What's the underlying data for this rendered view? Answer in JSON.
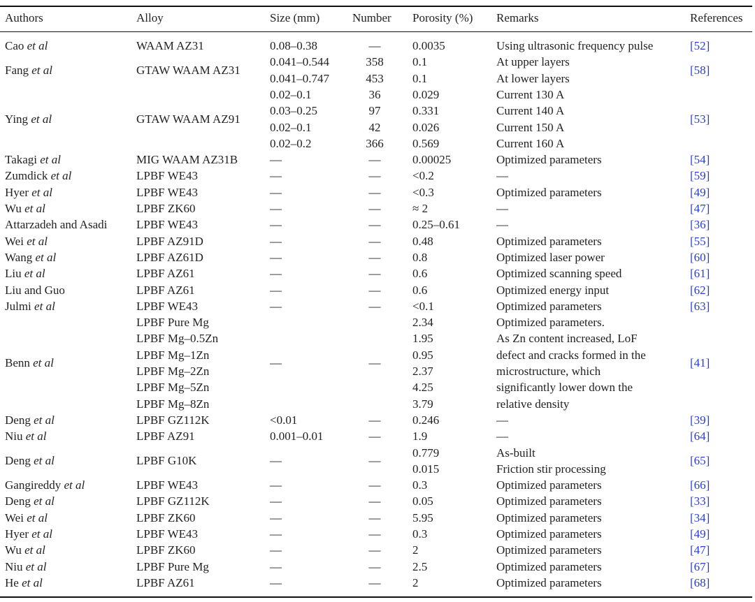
{
  "table": {
    "headers": [
      "Authors",
      "Alloy",
      "Size (mm)",
      "Number",
      "Porosity (%)",
      "Remarks",
      "References"
    ],
    "rows": [
      {
        "authors": "Cao",
        "authors_italic": "et al",
        "alloy": "WAAM AZ31",
        "size": "0.08–0.38",
        "number": "—",
        "porosity": "0.0035",
        "remarks": "Using ultrasonic frequency pulse",
        "references": "[52]"
      },
      {
        "authors": "Fang",
        "authors_italic": "et al",
        "alloy": "GTAW WAAM AZ31",
        "size": [
          "0.041–0.544",
          "0.041–0.747"
        ],
        "number": [
          "358",
          "453"
        ],
        "porosity": [
          "0.1",
          "0.1"
        ],
        "remarks": [
          "At upper layers",
          "At lower layers"
        ],
        "references": "[58]"
      },
      {
        "authors": "Ying",
        "authors_italic": "et al",
        "alloy": "GTAW WAAM AZ91",
        "size": [
          "0.02–0.1",
          "0.03–0.25",
          "0.02–0.1",
          "0.02–0.2"
        ],
        "number": [
          "36",
          "97",
          "42",
          "366"
        ],
        "porosity": [
          "0.029",
          "0.331",
          "0.026",
          "0.569"
        ],
        "remarks": [
          "Current 130 A",
          "Current 140 A",
          "Current 150 A",
          "Current 160 A"
        ],
        "references": "[53]"
      },
      {
        "authors": "Takagi",
        "authors_italic": "et al",
        "alloy": "MIG WAAM AZ31B",
        "size": "—",
        "number": "—",
        "porosity": "0.00025",
        "remarks": "Optimized parameters",
        "references": "[54]"
      },
      {
        "authors": "Zumdick",
        "authors_italic": "et al",
        "alloy": "LPBF WE43",
        "size": "—",
        "number": "—",
        "porosity": "<0.2",
        "remarks": "—",
        "references": "[59]"
      },
      {
        "authors": "Hyer",
        "authors_italic": "et al",
        "alloy": "LPBF WE43",
        "size": "—",
        "number": "—",
        "porosity": "<0.3",
        "remarks": "Optimized parameters",
        "references": "[49]"
      },
      {
        "authors": "Wu",
        "authors_italic": "et al",
        "alloy": "LPBF ZK60",
        "size": "—",
        "number": "—",
        "porosity": "≈ 2",
        "remarks": "—",
        "references": "[47]"
      },
      {
        "authors": "Attarzadeh and Asadi",
        "alloy": "LPBF WE43",
        "size": "—",
        "number": "—",
        "porosity": "0.25–0.61",
        "remarks": "—",
        "references": "[36]"
      },
      {
        "authors": "Wei",
        "authors_italic": "et al",
        "alloy": "LPBF AZ91D",
        "size": "—",
        "number": "—",
        "porosity": "0.48",
        "remarks": "Optimized parameters",
        "references": "[55]"
      },
      {
        "authors": "Wang",
        "authors_italic": "et al",
        "alloy": "LPBF AZ61D",
        "size": "—",
        "number": "—",
        "porosity": "0.8",
        "remarks": "Optimized laser power",
        "references": "[60]"
      },
      {
        "authors": "Liu",
        "authors_italic": "et al",
        "alloy": "LPBF AZ61",
        "size": "—",
        "number": "—",
        "porosity": "0.6",
        "remarks": "Optimized scanning speed",
        "references": "[61]"
      },
      {
        "authors": "Liu and Guo",
        "alloy": "LPBF AZ61",
        "size": "—",
        "number": "—",
        "porosity": "0.6",
        "remarks": "Optimized energy input",
        "references": "[62]"
      },
      {
        "authors": "Julmi",
        "authors_italic": "et al",
        "alloy": "LPBF WE43",
        "size": "—",
        "number": "—",
        "porosity": "<0.1",
        "remarks": "Optimized parameters",
        "references": "[63]"
      },
      {
        "authors": "Benn",
        "authors_italic": "et al",
        "alloy": [
          "LPBF Pure Mg",
          "LPBF Mg–0.5Zn",
          "LPBF Mg–1Zn",
          "LPBF Mg–2Zn",
          "LPBF Mg–5Zn",
          "LPBF Mg–8Zn"
        ],
        "size": "—",
        "number": "—",
        "porosity": [
          "2.34",
          "1.95",
          "0.95",
          "2.37",
          "4.25",
          "3.79"
        ],
        "remarks": [
          "Optimized parameters.",
          "As Zn content increased, LoF",
          "defect and cracks formed in the",
          "microstructure, which",
          "significantly lower down the",
          "relative density"
        ],
        "references": "[41]"
      },
      {
        "authors": "Deng",
        "authors_italic": "et al",
        "alloy": "LPBF GZ112K",
        "size": "<0.01",
        "number": "—",
        "porosity": "0.246",
        "remarks": "—",
        "references": "[39]"
      },
      {
        "authors": "Niu",
        "authors_italic": "et al",
        "alloy": "LPBF AZ91",
        "size": "0.001–0.01",
        "number": "—",
        "porosity": "1.9",
        "remarks": "—",
        "references": "[64]"
      },
      {
        "authors": "Deng",
        "authors_italic": "et al",
        "alloy": "LPBF G10K",
        "size": "—",
        "number": "—",
        "porosity": [
          "0.779",
          "0.015"
        ],
        "remarks": [
          "As-built",
          "Friction stir processing"
        ],
        "references": "[65]"
      },
      {
        "authors": "Gangireddy",
        "authors_italic": "et al",
        "alloy": "LPBF WE43",
        "size": "—",
        "number": "—",
        "porosity": "0.3",
        "remarks": "Optimized parameters",
        "references": "[66]"
      },
      {
        "authors": "Deng",
        "authors_italic": "et al",
        "alloy": "LPBF GZ112K",
        "size": "—",
        "number": "—",
        "porosity": "0.05",
        "remarks": "Optimized parameters",
        "references": "[33]"
      },
      {
        "authors": "Wei",
        "authors_italic": "et al",
        "alloy": "LPBF ZK60",
        "size": "—",
        "number": "—",
        "porosity": "5.95",
        "remarks": "Optimized parameters",
        "references": "[34]"
      },
      {
        "authors": "Hyer",
        "authors_italic": "et al",
        "alloy": "LPBF WE43",
        "size": "—",
        "number": "—",
        "porosity": "0.3",
        "remarks": "Optimized parameters",
        "references": "[49]"
      },
      {
        "authors": "Wu",
        "authors_italic": "et al",
        "alloy": "LPBF ZK60",
        "size": "—",
        "number": "—",
        "porosity": "2",
        "remarks": "Optimized parameters",
        "references": "[47]"
      },
      {
        "authors": "Niu",
        "authors_italic": "et al",
        "alloy": "LPBF Pure Mg",
        "size": "—",
        "number": "—",
        "porosity": "2.5",
        "remarks": "Optimized parameters",
        "references": "[67]"
      },
      {
        "authors": "He",
        "authors_italic": "et al",
        "alloy": "LPBF AZ61",
        "size": "—",
        "number": "—",
        "porosity": "2",
        "remarks": "Optimized parameters",
        "references": "[68]"
      }
    ]
  }
}
